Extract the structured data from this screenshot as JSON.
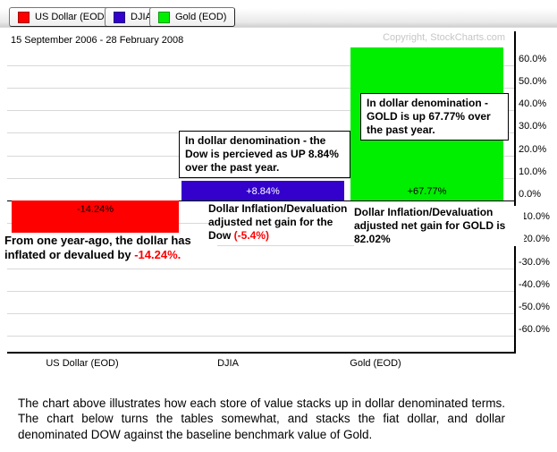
{
  "legend": {
    "items": [
      {
        "label": "US Dollar (EOD)",
        "color": "#ff0000"
      },
      {
        "label": "DJIA",
        "color": "#3300cc"
      },
      {
        "label": "Gold (EOD)",
        "color": "#00ee00"
      }
    ]
  },
  "header": {
    "date_range": "15 September 2006 - 28 February 2008",
    "copyright": "Copyright, StockCharts.com"
  },
  "chart_data": {
    "type": "bar",
    "title": "",
    "categories": [
      "US Dollar (EOD)",
      "DJIA",
      "Gold (EOD)"
    ],
    "values": [
      -14.24,
      8.84,
      67.77
    ],
    "bar_value_labels": [
      "-14.24%",
      "+8.84%",
      "+67.77%"
    ],
    "bar_colors": [
      "#ff0000",
      "#3300cc",
      "#00ee00"
    ],
    "bar_label_colors": [
      "#000000",
      "#ffffff",
      "#000000"
    ],
    "ylim": [
      -66,
      75
    ],
    "yticks": [
      60,
      50,
      40,
      30,
      20,
      10,
      0,
      -10,
      -20,
      -30,
      -40,
      -50,
      -60
    ],
    "ytick_labels": [
      "60.0%",
      "50.0%",
      "40.0%",
      "30.0%",
      "20.0%",
      "10.0%",
      "0.0%",
      "-10.0%",
      "-20.0%",
      "-30.0%",
      "-40.0%",
      "-50.0%",
      "-60.0%"
    ],
    "grid": true,
    "axis_side": "right",
    "legend_position": "top"
  },
  "annotations": {
    "gold_box": "In dollar denomination - GOLD is up 67.77% over the past year.",
    "dow_box": "In dollar denomination - the Dow is percieved as UP 8.84% over the past year.",
    "dollar_note_prefix": "From one year-ago, the dollar has inflated or devalued by ",
    "dollar_note_value": "-14.24%.",
    "dow_net_prefix": "Dollar Inflation/Devaluation adjusted net gain for the Dow ",
    "dow_net_value": "(-5.4%)",
    "gold_net": "Dollar Inflation/Devaluation adjusted net gain for GOLD is 82.02%"
  },
  "footer": {
    "paragraph": "The chart above illustrates how each store of value stacks up in dollar denominated terms. The chart below turns the tables somewhat, and stacks the fiat dollar, and dollar denominated DOW against the baseline benchmark value of Gold."
  }
}
